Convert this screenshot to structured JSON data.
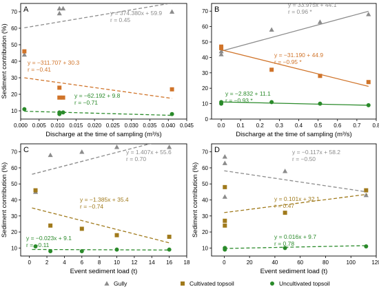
{
  "legend": {
    "items": [
      {
        "label": "Gully",
        "marker": "triangle",
        "color": "#8c8c8c"
      },
      {
        "label": "Cultivated topsoil",
        "marker": "square",
        "color": "#a07a1c"
      },
      {
        "label": "Uncultivated topsoil",
        "marker": "circle",
        "color": "#2a8a2a"
      }
    ]
  },
  "chart_data": [
    {
      "panel": "A",
      "type": "scatter",
      "xlabel": "Discharge at the time of sampling (m³/s)",
      "ylabel": "Sediment contribution (%)",
      "xlim": [
        0,
        0.045
      ],
      "ylim": [
        5,
        75
      ],
      "xticks": [
        0.0,
        0.005,
        0.01,
        0.015,
        0.02,
        0.025,
        0.03,
        0.035,
        0.04,
        0.045
      ],
      "xtick_labels": [
        "0.000",
        "0.005",
        "0.010",
        "0.015",
        "0.020",
        "0.025",
        "0.030",
        "0.035",
        "0.040",
        "0.045"
      ],
      "yticks": [
        10,
        20,
        30,
        40,
        50,
        60,
        70
      ],
      "ytick_labels": [
        "10",
        "20",
        "30",
        "40",
        "50",
        "60",
        "70"
      ],
      "series": [
        {
          "name": "Gully",
          "color": "#8c8c8c",
          "marker": "triangle",
          "points": [
            [
              0.001,
              44
            ],
            [
              0.0105,
              69
            ],
            [
              0.0105,
              72
            ],
            [
              0.0115,
              72
            ],
            [
              0.041,
              70
            ]
          ],
          "trend": {
            "slope": 374.38,
            "intercept": 59.9,
            "x_range": [
              0.001,
              0.041
            ],
            "style": "dashed"
          },
          "annotation": [
            "y = 374.380x + 59.9",
            "r = 0.45"
          ]
        },
        {
          "name": "Cultivated topsoil",
          "color": "#d0742a",
          "marker": "square",
          "points": [
            [
              0.001,
              46
            ],
            [
              0.0105,
              24
            ],
            [
              0.0105,
              18
            ],
            [
              0.0115,
              18
            ],
            [
              0.041,
              23
            ]
          ],
          "trend": {
            "slope": -311.707,
            "intercept": 30.3,
            "x_range": [
              0.001,
              0.041
            ],
            "style": "dashed"
          },
          "annotation": [
            "y = −311.707 + 30.3",
            "r = −0.41"
          ]
        },
        {
          "name": "Uncultivated topsoil",
          "color": "#2a8a2a",
          "marker": "circle",
          "points": [
            [
              0.001,
              11
            ],
            [
              0.0105,
              9
            ],
            [
              0.0105,
              8
            ],
            [
              0.0115,
              9
            ],
            [
              0.041,
              8
            ]
          ],
          "trend": {
            "slope": -62.192,
            "intercept": 9.8,
            "x_range": [
              0.001,
              0.041
            ],
            "style": "dashed"
          },
          "annotation": [
            "y = −62.192 + 9.8",
            "r = −0.71"
          ]
        }
      ]
    },
    {
      "panel": "B",
      "type": "scatter",
      "xlabel": "Discharge at the time of sampling (m³/s)",
      "ylabel": "",
      "xlim": [
        -0.05,
        0.8
      ],
      "ylim": [
        0,
        75
      ],
      "xticks": [
        0.0,
        0.1,
        0.2,
        0.3,
        0.4,
        0.5,
        0.6,
        0.7,
        0.8
      ],
      "xtick_labels": [
        "0.0",
        "0.1",
        "0.2",
        "0.3",
        "0.4",
        "0.5",
        "0.6",
        "0.7",
        "0.8"
      ],
      "yticks": [
        0,
        10,
        20,
        30,
        40,
        50,
        60,
        70
      ],
      "ytick_labels": [
        "0",
        "10",
        "20",
        "30",
        "40",
        "50",
        "60",
        "70"
      ],
      "series": [
        {
          "name": "Gully",
          "color": "#8c8c8c",
          "marker": "triangle",
          "points": [
            [
              0.0,
              42
            ],
            [
              0.0,
              44
            ],
            [
              0.26,
              58
            ],
            [
              0.51,
              63
            ],
            [
              0.76,
              68
            ]
          ],
          "trend": {
            "slope": 33.975,
            "intercept": 44.1,
            "x_range": [
              0.0,
              0.76
            ],
            "style": "solid"
          },
          "annotation": [
            "y = 33.975x + 44.1",
            "r = 0.96 *"
          ]
        },
        {
          "name": "Cultivated topsoil",
          "color": "#d0742a",
          "marker": "square",
          "points": [
            [
              0.0,
              47
            ],
            [
              0.0,
              46
            ],
            [
              0.26,
              32
            ],
            [
              0.51,
              28
            ],
            [
              0.76,
              24
            ]
          ],
          "trend": {
            "slope": -31.19,
            "intercept": 44.9,
            "x_range": [
              0.0,
              0.76
            ],
            "style": "solid"
          },
          "annotation": [
            "y = −31.190 + 44.9",
            "r = −0.95 *"
          ]
        },
        {
          "name": "Uncultivated topsoil",
          "color": "#2a8a2a",
          "marker": "circle",
          "points": [
            [
              0.0,
              11
            ],
            [
              0.0,
              10
            ],
            [
              0.26,
              11
            ],
            [
              0.51,
              10
            ],
            [
              0.76,
              9
            ]
          ],
          "trend": {
            "slope": -2.832,
            "intercept": 11.1,
            "x_range": [
              0.0,
              0.76
            ],
            "style": "solid"
          },
          "annotation": [
            "y = −2.832 + 11.1",
            "r = −0.93 *"
          ]
        }
      ]
    },
    {
      "panel": "C",
      "type": "scatter",
      "xlabel": "Event sediment load (t)",
      "ylabel": "Sediment contribution (%)",
      "xlim": [
        -1,
        18
      ],
      "ylim": [
        5,
        75
      ],
      "xticks": [
        0,
        2,
        4,
        6,
        8,
        10,
        12,
        14,
        16,
        18
      ],
      "xtick_labels": [
        "0",
        "2",
        "4",
        "6",
        "8",
        "10",
        "12",
        "14",
        "16",
        "18"
      ],
      "yticks": [
        10,
        20,
        30,
        40,
        50,
        60,
        70
      ],
      "ytick_labels": [
        "10",
        "20",
        "30",
        "40",
        "50",
        "60",
        "70"
      ],
      "series": [
        {
          "name": "Gully",
          "color": "#8c8c8c",
          "marker": "triangle",
          "points": [
            [
              0.7,
              45
            ],
            [
              2.4,
              68
            ],
            [
              6.0,
              70
            ],
            [
              10.0,
              73
            ],
            [
              16.0,
              73
            ]
          ],
          "trend": {
            "slope": 1.407,
            "intercept": 55.6,
            "x_range": [
              0.3,
              16.2
            ],
            "style": "dashed"
          },
          "annotation": [
            "y = 1.407x + 55.6",
            "r = 0.70"
          ]
        },
        {
          "name": "Cultivated topsoil",
          "color": "#a07a1c",
          "marker": "square",
          "points": [
            [
              0.7,
              46
            ],
            [
              2.4,
              24
            ],
            [
              6.0,
              22
            ],
            [
              10.0,
              18
            ],
            [
              16.0,
              17
            ]
          ],
          "trend": {
            "slope": -1.385,
            "intercept": 35.4,
            "x_range": [
              0.3,
              16.2
            ],
            "style": "dashed"
          },
          "annotation": [
            "y = −1.385x + 35.4",
            "r = −0.74"
          ]
        },
        {
          "name": "Uncultivated topsoil",
          "color": "#2a8a2a",
          "marker": "circle",
          "points": [
            [
              0.7,
              11
            ],
            [
              2.4,
              8
            ],
            [
              6.0,
              8
            ],
            [
              10.0,
              9
            ],
            [
              16.0,
              9
            ]
          ],
          "trend": {
            "slope": -0.023,
            "intercept": 9.1,
            "x_range": [
              0.3,
              16.2
            ],
            "style": "dashed"
          },
          "annotation": [
            "y = −0.023x + 9.1",
            "r = −0.11"
          ]
        }
      ]
    },
    {
      "panel": "D",
      "type": "scatter",
      "xlabel": "Event sediment load (t)",
      "ylabel": "Sediment contribution (%)",
      "xlim": [
        -10,
        120
      ],
      "ylim": [
        5,
        75
      ],
      "xticks": [
        0,
        20,
        40,
        60,
        80,
        100,
        120
      ],
      "xtick_labels": [
        "0",
        "20",
        "40",
        "60",
        "80",
        "100",
        "120"
      ],
      "yticks": [
        10,
        20,
        30,
        40,
        50,
        60,
        70
      ],
      "ytick_labels": [
        "10",
        "20",
        "30",
        "40",
        "50",
        "60",
        "70"
      ],
      "series": [
        {
          "name": "Gully",
          "color": "#8c8c8c",
          "marker": "triangle",
          "points": [
            [
              0.5,
              67
            ],
            [
              0.5,
              63
            ],
            [
              0.5,
              42
            ],
            [
              48,
              58
            ],
            [
              112,
              43
            ]
          ],
          "trend": {
            "slope": -0.117,
            "intercept": 58.2,
            "x_range": [
              0,
              113
            ],
            "style": "dashed"
          },
          "annotation": [
            "y = −0.117x + 58.2",
            "r = −0.50"
          ]
        },
        {
          "name": "Cultivated topsoil",
          "color": "#a07a1c",
          "marker": "square",
          "points": [
            [
              0.5,
              48
            ],
            [
              0.5,
              27
            ],
            [
              0.5,
              24
            ],
            [
              48,
              32
            ],
            [
              112,
              46
            ]
          ],
          "trend": {
            "slope": 0.101,
            "intercept": 32.1,
            "x_range": [
              0,
              113
            ],
            "style": "dashed"
          },
          "annotation": [
            "y = 0.101x + 32.1",
            "r = 0.47"
          ]
        },
        {
          "name": "Uncultivated topsoil",
          "color": "#2a8a2a",
          "marker": "circle",
          "points": [
            [
              0.5,
              10
            ],
            [
              0.5,
              9
            ],
            [
              0.5,
              10
            ],
            [
              48,
              10
            ],
            [
              112,
              11
            ]
          ],
          "trend": {
            "slope": 0.016,
            "intercept": 9.7,
            "x_range": [
              0,
              113
            ],
            "style": "dashed"
          },
          "annotation": [
            "y = 0.016x + 9.7",
            "r = 0.78"
          ]
        }
      ]
    }
  ]
}
